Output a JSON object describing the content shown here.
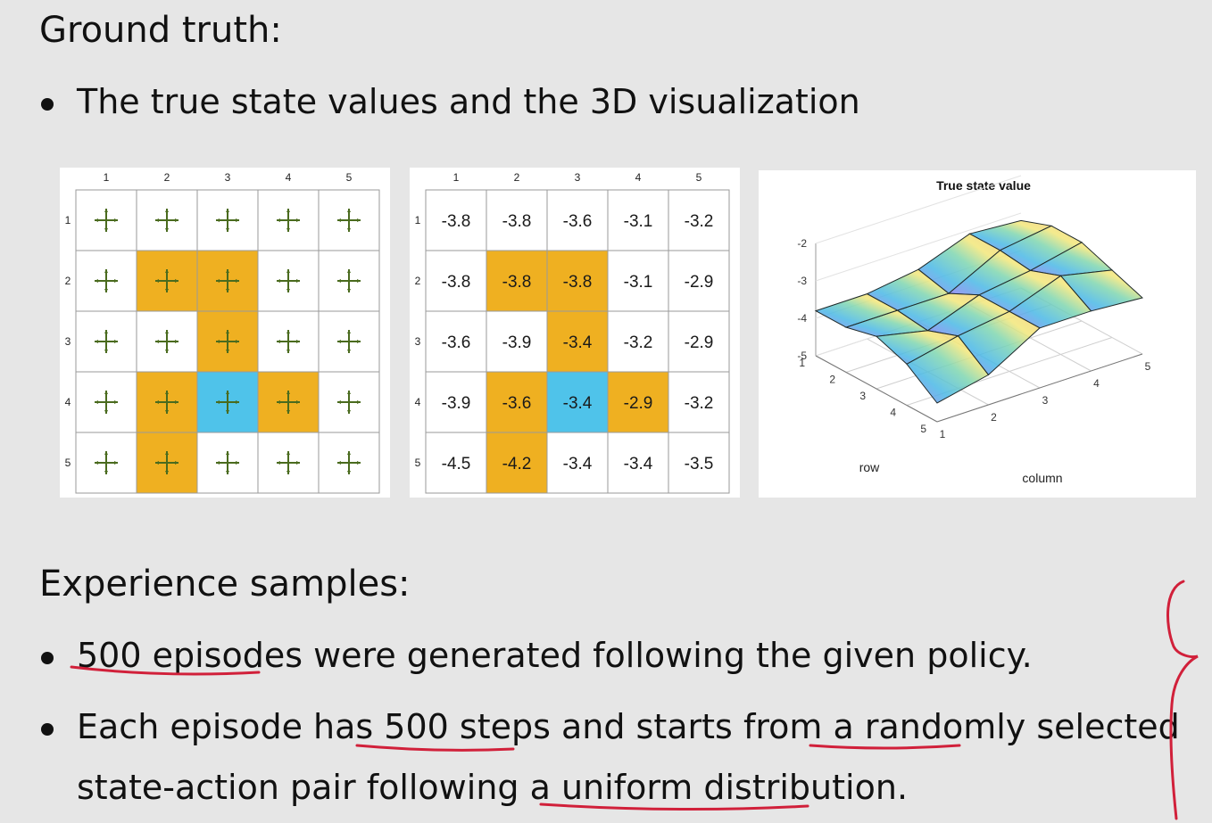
{
  "section1": {
    "title": "Ground truth:",
    "bullet": "The true state values and the 3D visualization"
  },
  "grid": {
    "col_labels": [
      "1",
      "2",
      "3",
      "4",
      "5"
    ],
    "row_labels": [
      "1",
      "2",
      "3",
      "4",
      "5"
    ],
    "cell_types": [
      [
        "white",
        "white",
        "white",
        "white",
        "white"
      ],
      [
        "white",
        "forbidden",
        "forbidden",
        "white",
        "white"
      ],
      [
        "white",
        "white",
        "forbidden",
        "white",
        "white"
      ],
      [
        "white",
        "forbidden",
        "target",
        "forbidden",
        "white"
      ],
      [
        "white",
        "forbidden",
        "white",
        "white",
        "white"
      ]
    ],
    "policy_icon": "cross-arrows-icon",
    "colors": {
      "white": "#ffffff",
      "forbidden": "#efb021",
      "target": "#4fc3ea",
      "grid_line": "#9a9a9a",
      "policy": "#4a6b1e"
    }
  },
  "values_grid": {
    "values": [
      [
        "-3.8",
        "-3.8",
        "-3.6",
        "-3.1",
        "-3.2"
      ],
      [
        "-3.8",
        "-3.8",
        "-3.8",
        "-3.1",
        "-2.9"
      ],
      [
        "-3.6",
        "-3.9",
        "-3.4",
        "-3.2",
        "-2.9"
      ],
      [
        "-3.9",
        "-3.6",
        "-3.4",
        "-2.9",
        "-3.2"
      ],
      [
        "-4.5",
        "-4.2",
        "-3.4",
        "-3.4",
        "-3.5"
      ]
    ]
  },
  "chart_data": {
    "type": "surface",
    "title": "True state value",
    "xlabel": "column",
    "ylabel": "row",
    "x_ticks": [
      "1",
      "2",
      "3",
      "4",
      "5"
    ],
    "y_ticks": [
      "1",
      "2",
      "3",
      "4",
      "5"
    ],
    "z_ticks": [
      "-2",
      "-3",
      "-4",
      "-5"
    ],
    "zlim": [
      -5,
      -2
    ],
    "z": [
      [
        -3.8,
        -3.8,
        -3.6,
        -3.1,
        -3.2
      ],
      [
        -3.8,
        -3.8,
        -3.8,
        -3.1,
        -2.9
      ],
      [
        -3.6,
        -3.9,
        -3.4,
        -3.2,
        -2.9
      ],
      [
        -3.9,
        -3.6,
        -3.4,
        -2.9,
        -3.2
      ],
      [
        -4.5,
        -4.2,
        -3.4,
        -3.4,
        -3.5
      ]
    ]
  },
  "section2": {
    "title": "Experience samples:",
    "bullet1": {
      "part1": "500 episodes",
      "part2": " were generated following the given policy."
    },
    "bullet2": {
      "part1": "Each episode has ",
      "part2": "500 steps",
      "part3": " and starts from a ",
      "part4": "randomly",
      "part5": " selected"
    },
    "bullet2_cont": {
      "part1": "state-action pair following a ",
      "part2": "uniform distribution",
      "part3": "."
    }
  },
  "annotation": {
    "ink_color": "#d1203a"
  }
}
